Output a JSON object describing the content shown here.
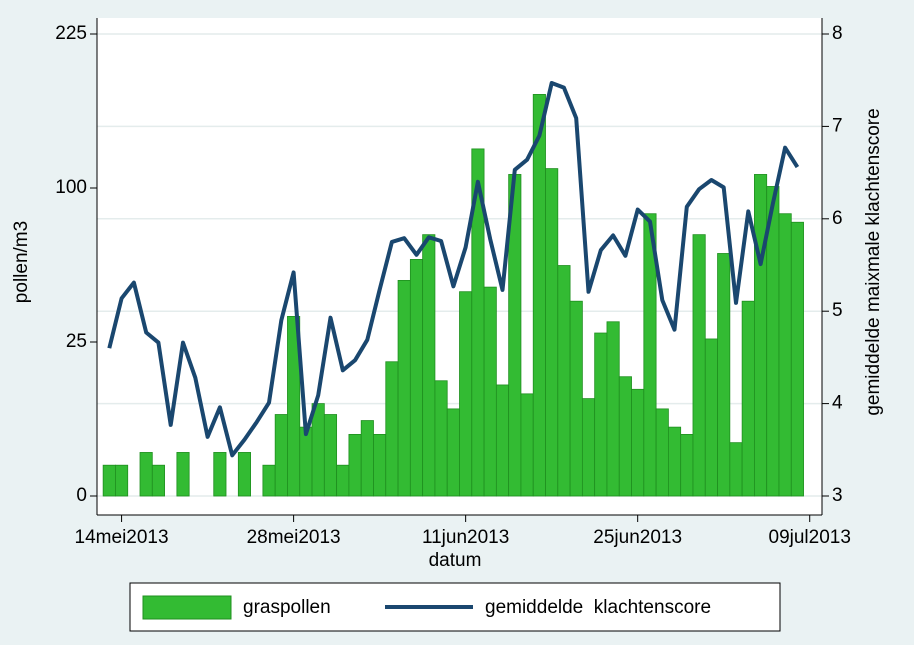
{
  "chart_data": {
    "type": "bar-line",
    "x_label": "datum",
    "y_label": "pollen/m3",
    "y2_label": "gemiddelde maixmale klachtenscore",
    "x": [
      "2013-05-13",
      "2013-05-14",
      "2013-05-15",
      "2013-05-16",
      "2013-05-17",
      "2013-05-18",
      "2013-05-19",
      "2013-05-20",
      "2013-05-21",
      "2013-05-22",
      "2013-05-23",
      "2013-05-24",
      "2013-05-25",
      "2013-05-26",
      "2013-05-27",
      "2013-05-28",
      "2013-05-29",
      "2013-05-30",
      "2013-05-31",
      "2013-06-01",
      "2013-06-02",
      "2013-06-03",
      "2013-06-04",
      "2013-06-05",
      "2013-06-06",
      "2013-06-07",
      "2013-06-08",
      "2013-06-09",
      "2013-06-10",
      "2013-06-11",
      "2013-06-12",
      "2013-06-13",
      "2013-06-14",
      "2013-06-15",
      "2013-06-16",
      "2013-06-17",
      "2013-06-18",
      "2013-06-19",
      "2013-06-20",
      "2013-06-21",
      "2013-06-22",
      "2013-06-23",
      "2013-06-24",
      "2013-06-25",
      "2013-06-26",
      "2013-06-27",
      "2013-06-28",
      "2013-06-29",
      "2013-06-30",
      "2013-07-01",
      "2013-07-02",
      "2013-07-03",
      "2013-07-04",
      "2013-07-05",
      "2013-07-06",
      "2013-07-07",
      "2013-07-08"
    ],
    "series": [
      {
        "name": "graspollen",
        "type": "bar",
        "color": "#33bb33",
        "edge": "#1f8f1f",
        "values": [
          1,
          1,
          0,
          2,
          1,
          0,
          2,
          0,
          0,
          2,
          0,
          2,
          0,
          1,
          7,
          34,
          5,
          9,
          7,
          1,
          4,
          6,
          4,
          19,
          49,
          59,
          72,
          14,
          8,
          44,
          127,
          46,
          13,
          109,
          11,
          170,
          113,
          56,
          40,
          10,
          28,
          32,
          15,
          12,
          84,
          8,
          5,
          4,
          72,
          26,
          62,
          3,
          40,
          109,
          101,
          84,
          79
        ]
      },
      {
        "name": "gemiddelde  klachtenscore",
        "type": "line",
        "axis": "y2",
        "color": "#1a476f",
        "values": [
          4.6,
          5.14,
          5.31,
          4.77,
          4.66,
          3.77,
          4.66,
          4.28,
          3.64,
          3.96,
          3.44,
          3.61,
          3.8,
          4.01,
          4.9,
          5.42,
          3.67,
          4.09,
          4.93,
          4.36,
          4.47,
          4.69,
          5.23,
          5.75,
          5.79,
          5.61,
          5.8,
          5.76,
          5.27,
          5.69,
          6.4,
          5.78,
          5.23,
          6.53,
          6.64,
          6.9,
          7.47,
          7.42,
          7.09,
          5.21,
          5.66,
          5.82,
          5.6,
          6.1,
          5.97,
          5.12,
          4.8,
          6.13,
          6.32,
          6.42,
          6.34,
          5.09,
          6.08,
          5.51,
          6.16,
          6.77,
          6.56
        ]
      }
    ],
    "xlim": [
      "2013-05-12",
      "2013-07-10"
    ],
    "xticks": [
      {
        "value": "2013-05-14",
        "label": "14mei2013"
      },
      {
        "value": "2013-05-28",
        "label": "28mei2013"
      },
      {
        "value": "2013-06-11",
        "label": "11jun2013"
      },
      {
        "value": "2013-06-25",
        "label": "25jun2013"
      },
      {
        "value": "2013-07-09",
        "label": "09jul2013"
      }
    ],
    "ylim": [
      0,
      225
    ],
    "yscale": "sqrt",
    "yticks": [
      0,
      25,
      100,
      225
    ],
    "y2lim": [
      3,
      8
    ],
    "y2ticks": [
      3,
      4,
      5,
      6,
      7,
      8
    ],
    "grid": "y2",
    "legend": "bottom"
  }
}
